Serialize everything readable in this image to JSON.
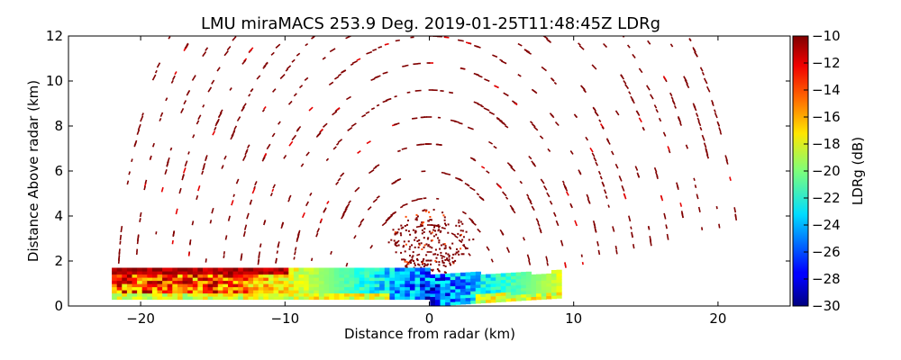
{
  "chart_data": {
    "type": "heatmap",
    "title": "LMU miraMACS 253.9 Deg. 2019-01-25T11:48:45Z  LDRg",
    "xlabel": "Distance from radar (km)",
    "ylabel": "Distance Above radar  (km)",
    "xlim": [
      -25,
      25
    ],
    "ylim": [
      0,
      12
    ],
    "xticks": [
      -20,
      -10,
      0,
      10,
      20
    ],
    "yticks": [
      0,
      2,
      4,
      6,
      8,
      10,
      12
    ],
    "grid": false,
    "colorbar": {
      "label": "LDRg (dB)",
      "range": [
        -30,
        -10
      ],
      "ticks": [
        -10,
        -12,
        -14,
        -16,
        -18,
        -20,
        -22,
        -24,
        -26,
        -28,
        -30
      ],
      "colormap": "jet"
    },
    "scan": {
      "radar_position_km": [
        0,
        0
      ],
      "max_range_km": 22.5,
      "left_elevation_deg": 180,
      "right_elevation_deg": 10,
      "range_gates_km": [
        2.4,
        3.6,
        4.8,
        6.0,
        7.2,
        8.4,
        9.6,
        10.8,
        12.0,
        13.2,
        14.4,
        15.6,
        16.8,
        18.0,
        19.2,
        20.4,
        21.6
      ],
      "dominant_value_above_boundary_layer_db": -10,
      "dense_echo_region": {
        "x_km": [
          -22,
          9
        ],
        "top_height_km": 1.6,
        "values_near_radar_db": [
          -30,
          -22
        ],
        "values_left_db": [
          -10,
          -18
        ]
      }
    }
  }
}
